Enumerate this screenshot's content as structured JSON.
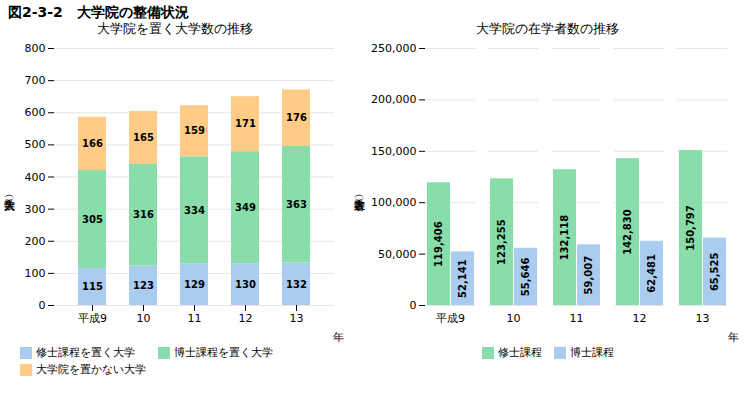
{
  "title": "図2-3-2　大学院の整備状況",
  "chart_data": [
    {
      "type": "bar",
      "title": "大学院を置く大学数の推移",
      "xlabel": "年",
      "ylabel": "大学数（人）",
      "categories": [
        "平成9",
        "10",
        "11",
        "12",
        "13"
      ],
      "series": [
        {
          "name": "修士課程を置く大学",
          "color": "#aaccee",
          "values": [
            115,
            123,
            129,
            130,
            132
          ]
        },
        {
          "name": "博士課程を置く大学",
          "color": "#88ddaa",
          "values": [
            305,
            316,
            334,
            349,
            363
          ]
        },
        {
          "name": "大学院を置かない大学",
          "color": "#ffcc88",
          "values": [
            166,
            165,
            159,
            171,
            176
          ]
        }
      ],
      "ylim": [
        0,
        800
      ],
      "yticks": [
        0,
        100,
        200,
        300,
        400,
        500,
        600,
        700,
        800
      ],
      "grid": true,
      "stacked": true,
      "data_labels": true,
      "legend": "lower left"
    },
    {
      "type": "bar",
      "title": "大学院の在学者数の推移",
      "xlabel": "年",
      "ylabel": "在学者数（人）",
      "categories": [
        "平成9",
        "10",
        "11",
        "12",
        "13"
      ],
      "series": [
        {
          "name": "修士課程",
          "color": "#88ddaa",
          "values": [
            119406,
            123255,
            132118,
            142830,
            150797
          ],
          "value_labels": [
            "119,406",
            "123,255",
            "132,118",
            "142,830",
            "150,797"
          ]
        },
        {
          "name": "博士課程",
          "color": "#aaccee",
          "values": [
            52141,
            55646,
            59007,
            62481,
            65525
          ],
          "value_labels": [
            "52,141",
            "55,646",
            "59,007",
            "62,481",
            "65,525"
          ]
        }
      ],
      "ylim": [
        0,
        250000
      ],
      "yticks": [
        0,
        {
          "value": 50000,
          "label": "50,000"
        },
        {
          "value": 100000,
          "label": "100,000"
        },
        {
          "value": 150000,
          "label": "150,000"
        },
        {
          "value": 200000,
          "label": "200,000"
        },
        {
          "value": 250000,
          "label": "250,000"
        }
      ],
      "grid": true,
      "stacked": false,
      "data_labels": true,
      "legend": "lower center"
    }
  ]
}
